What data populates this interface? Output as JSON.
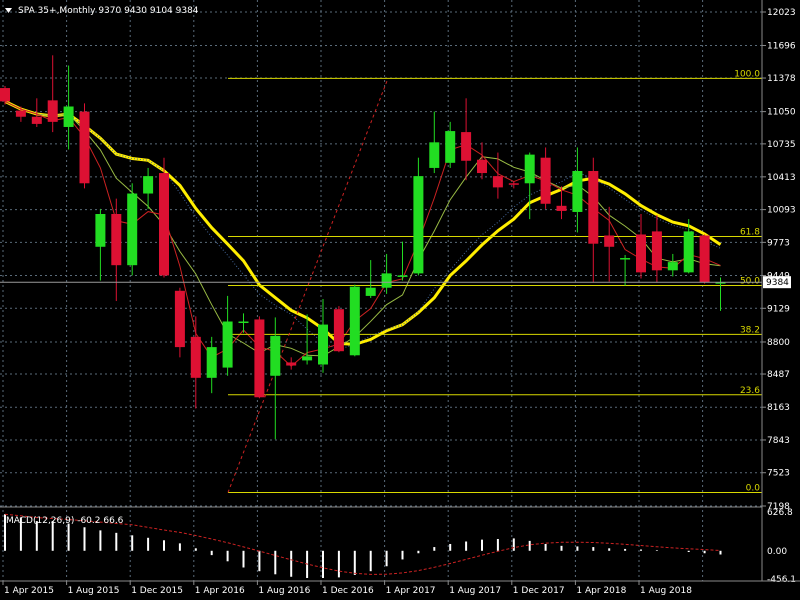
{
  "header": {
    "symbol_caption": "SPA 35+,Monthly  9370 9430 9104 9384"
  },
  "colors": {
    "background": "#000000",
    "grid": "#5a6b7a",
    "bull": "#22dd22",
    "bear": "#dd1133",
    "ma_thick": "#ffee00",
    "ma_red": "#cc2222",
    "ma_thin": "#99bb44",
    "ma_dots": "#446699",
    "fib": "#d8d800",
    "trend": "#cc2222",
    "axis_text": "#ffffff",
    "macd_hist": "#ffffff",
    "macd_signal": "#cc2222"
  },
  "price_axis": {
    "ticks": [
      "12023",
      "11696",
      "11378",
      "11050",
      "10735",
      "10413",
      "10093",
      "9773",
      "9449",
      "9129",
      "8800",
      "8487",
      "8163",
      "7843",
      "7523",
      "7198"
    ],
    "current_price": "9384"
  },
  "time_axis": {
    "labels": [
      "1 Apr 2015",
      "1 Aug 2015",
      "1 Dec 2015",
      "1 Apr 2016",
      "1 Aug 2016",
      "1 Dec 2016",
      "1 Apr 2017",
      "1 Aug 2017",
      "1 Dec 2017",
      "1 Apr 2018",
      "1 Aug 2018"
    ]
  },
  "fibonacci": {
    "levels": [
      {
        "label": "100.0",
        "price": 11375
      },
      {
        "label": "61.8",
        "price": 9830
      },
      {
        "label": "50.0",
        "price": 9352
      },
      {
        "label": "38.2",
        "price": 8874
      },
      {
        "label": "23.6",
        "price": 8284
      },
      {
        "label": "0.0",
        "price": 7330
      }
    ]
  },
  "macd": {
    "caption": "MACD(12,26,9) -60.2 66.6",
    "ticks": [
      "626.8",
      "0.00",
      "-456.1"
    ]
  },
  "chart_data": {
    "type": "candlestick",
    "title": "SPA 35+,Monthly",
    "ylim": [
      7198,
      12023
    ],
    "candles": [
      {
        "o": 11280,
        "h": 11300,
        "l": 11120,
        "c": 11150
      },
      {
        "o": 11060,
        "h": 11100,
        "l": 10950,
        "c": 11000
      },
      {
        "o": 11000,
        "h": 11180,
        "l": 10900,
        "c": 10930
      },
      {
        "o": 11160,
        "h": 11600,
        "l": 10850,
        "c": 10950
      },
      {
        "o": 10900,
        "h": 11500,
        "l": 10680,
        "c": 11100
      },
      {
        "o": 11050,
        "h": 11130,
        "l": 10300,
        "c": 10350
      },
      {
        "o": 9730,
        "h": 10100,
        "l": 9400,
        "c": 10050
      },
      {
        "o": 10050,
        "h": 10200,
        "l": 9200,
        "c": 9550
      },
      {
        "o": 9550,
        "h": 10350,
        "l": 9450,
        "c": 10250
      },
      {
        "o": 10250,
        "h": 10500,
        "l": 10100,
        "c": 10420
      },
      {
        "o": 10450,
        "h": 10600,
        "l": 9430,
        "c": 9450
      },
      {
        "o": 9300,
        "h": 9330,
        "l": 8650,
        "c": 8750
      },
      {
        "o": 8850,
        "h": 9050,
        "l": 8150,
        "c": 8450
      },
      {
        "o": 8450,
        "h": 8850,
        "l": 8300,
        "c": 8750
      },
      {
        "o": 8550,
        "h": 9250,
        "l": 8470,
        "c": 9000
      },
      {
        "o": 9000,
        "h": 9080,
        "l": 8890,
        "c": 9000
      },
      {
        "o": 9020,
        "h": 9050,
        "l": 8250,
        "c": 8260
      },
      {
        "o": 8470,
        "h": 9040,
        "l": 7850,
        "c": 8860
      },
      {
        "o": 8600,
        "h": 8650,
        "l": 8530,
        "c": 8570
      },
      {
        "o": 8620,
        "h": 9070,
        "l": 8580,
        "c": 8660
      },
      {
        "o": 8580,
        "h": 9220,
        "l": 8500,
        "c": 8970
      },
      {
        "o": 9120,
        "h": 9150,
        "l": 8700,
        "c": 8710
      },
      {
        "o": 8670,
        "h": 9360,
        "l": 8660,
        "c": 9340
      },
      {
        "o": 9250,
        "h": 9600,
        "l": 9230,
        "c": 9330
      },
      {
        "o": 9330,
        "h": 9660,
        "l": 9270,
        "c": 9470
      },
      {
        "o": 9450,
        "h": 9780,
        "l": 9400,
        "c": 9450
      },
      {
        "o": 9470,
        "h": 10600,
        "l": 9450,
        "c": 10420
      },
      {
        "o": 10500,
        "h": 11050,
        "l": 10450,
        "c": 10750
      },
      {
        "o": 10550,
        "h": 10950,
        "l": 10500,
        "c": 10860
      },
      {
        "o": 10850,
        "h": 11180,
        "l": 10380,
        "c": 10570
      },
      {
        "o": 10580,
        "h": 10750,
        "l": 10390,
        "c": 10450
      },
      {
        "o": 10420,
        "h": 10650,
        "l": 10200,
        "c": 10310
      },
      {
        "o": 10350,
        "h": 10370,
        "l": 10300,
        "c": 10340
      },
      {
        "o": 10350,
        "h": 10650,
        "l": 10000,
        "c": 10630
      },
      {
        "o": 10600,
        "h": 10700,
        "l": 10100,
        "c": 10150
      },
      {
        "o": 10130,
        "h": 10320,
        "l": 10000,
        "c": 10080
      },
      {
        "o": 10070,
        "h": 10700,
        "l": 9870,
        "c": 10470
      },
      {
        "o": 10470,
        "h": 10600,
        "l": 9380,
        "c": 9760
      },
      {
        "o": 9840,
        "h": 10120,
        "l": 9390,
        "c": 9730
      },
      {
        "o": 9620,
        "h": 9650,
        "l": 9350,
        "c": 9620
      },
      {
        "o": 9850,
        "h": 10050,
        "l": 9420,
        "c": 9480
      },
      {
        "o": 9880,
        "h": 10040,
        "l": 9380,
        "c": 9500
      },
      {
        "o": 9500,
        "h": 9660,
        "l": 9440,
        "c": 9580
      },
      {
        "o": 9480,
        "h": 10000,
        "l": 9470,
        "c": 9880
      },
      {
        "o": 9840,
        "h": 9850,
        "l": 9370,
        "c": 9380
      },
      {
        "o": 9370,
        "h": 9430,
        "l": 9104,
        "c": 9384
      }
    ],
    "series": [],
    "macd_histogram": [
      590,
      540,
      480,
      480,
      440,
      380,
      330,
      290,
      250,
      210,
      170,
      120,
      40,
      -70,
      -170,
      -270,
      -330,
      -380,
      -420,
      -440,
      -440,
      -430,
      -390,
      -330,
      -250,
      -140,
      -40,
      60,
      110,
      150,
      180,
      190,
      200,
      160,
      110,
      80,
      70,
      60,
      40,
      30,
      20,
      10,
      0,
      -20,
      -40,
      -60
    ]
  }
}
